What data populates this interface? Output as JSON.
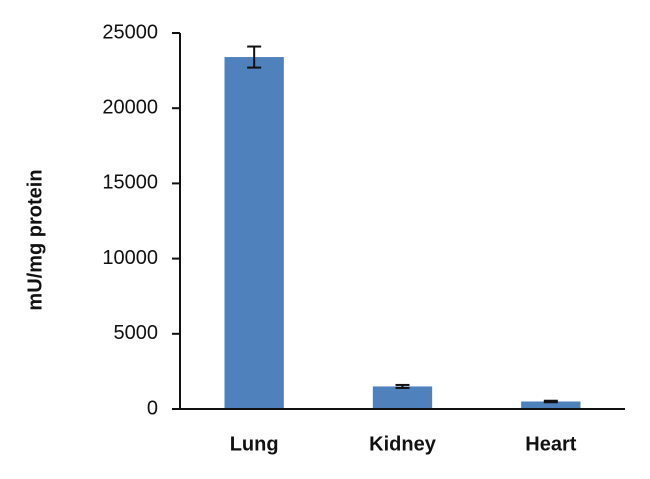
{
  "chart_data": {
    "type": "bar",
    "y_label": "mU/mg protein",
    "categories": [
      "Lung",
      "Kidney",
      "Heart"
    ],
    "values": [
      23400,
      1500,
      500
    ],
    "errors": [
      700,
      100,
      50
    ],
    "color": "#4f81bd",
    "ylim": [
      0,
      25000
    ],
    "yticks": [
      0,
      5000,
      10000,
      15000,
      20000,
      25000
    ],
    "grid": false
  }
}
